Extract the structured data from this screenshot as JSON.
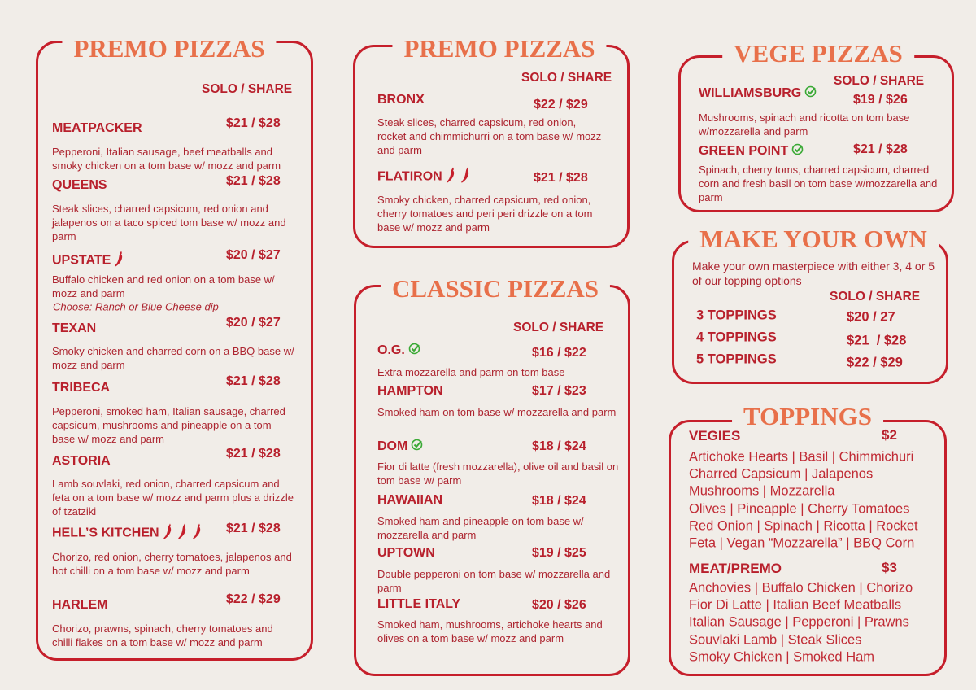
{
  "panels": [
    {
      "title": "PREMO PIZZAS",
      "header": "SOLO / SHARE",
      "items": [
        {
          "name": "MEATPACKER",
          "price": "$21 / $28",
          "desc": "Pepperoni, Italian sausage, beef meatballs and smoky chicken on a tom base w/ mozz and parm"
        },
        {
          "name": "QUEENS",
          "price": "$21 / $28",
          "desc": "Steak slices, charred capsicum, red onion and jalapenos on a taco spiced tom base w/ mozz and parm"
        },
        {
          "name": "UPSTATE",
          "price": "$20 / $27",
          "desc": "Buffalo chicken and red onion on a tom base w/ mozz and parm",
          "note": "Choose: Ranch or Blue Cheese dip"
        },
        {
          "name": "TEXAN",
          "price": "$20 / $27",
          "desc": "Smoky chicken and charred corn on a BBQ base w/ mozz and parm"
        },
        {
          "name": "TRIBECA",
          "price": "$21 / $28",
          "desc": "Pepperoni, smoked ham, Italian sausage, charred capsicum, mushrooms and pineapple on a tom base w/ mozz and parm"
        },
        {
          "name": "ASTORIA",
          "price": "$21 / $28",
          "desc": "Lamb souvlaki, red onion, charred capsicum and feta on a tom base w/ mozz and parm plus a drizzle of tzatziki"
        },
        {
          "name": "HELL’S KITCHEN",
          "price": "$21 / $28",
          "desc": "Chorizo, red onion, cherry tomatoes, jalapenos and hot chilli on a tom base w/ mozz and parm"
        },
        {
          "name": "HARLEM",
          "price": "$22 / $29",
          "desc": "Chorizo, prawns, spinach, cherry tomatoes and chilli flakes on a tom base w/ mozz and parm"
        }
      ]
    },
    {
      "title": "PREMO PIZZAS",
      "header": "SOLO / SHARE",
      "items": [
        {
          "name": "BRONX",
          "price": "$22 / $29",
          "desc": "Steak slices, charred capsicum, red onion, rocket and chimmichurri on a tom base w/ mozz and parm"
        },
        {
          "name": "FLATIRON",
          "price": "$21 / $28",
          "desc": "Smoky chicken, charred capsicum, red onion, cherry tomatoes and peri peri drizzle on a tom base w/ mozz and parm"
        }
      ]
    },
    {
      "title": "CLASSIC PIZZAS",
      "header": "SOLO / SHARE",
      "items": [
        {
          "name": "O.G.",
          "price": "$16 / $22",
          "desc": "Extra mozzarella and parm on tom base"
        },
        {
          "name": "HAMPTON",
          "price": "$17 / $23",
          "desc": "Smoked ham on tom base w/ mozzarella and parm"
        },
        {
          "name": "DOM",
          "price": "$18 / $24",
          "desc": "Fior di latte (fresh mozzarella), olive oil and basil on tom base w/ parm"
        },
        {
          "name": "HAWAIIAN",
          "price": "$18 / $24",
          "desc": "Smoked ham and pineapple on tom base w/ mozzarella and parm"
        },
        {
          "name": "UPTOWN",
          "price": "$19 / $25",
          "desc": "Double pepperoni on tom base w/ mozzarella and parm"
        },
        {
          "name": "LITTLE ITALY",
          "price": "$20 / $26",
          "desc": "Smoked ham, mushrooms, artichoke hearts and olives on a tom base w/ mozz and parm"
        }
      ]
    },
    {
      "title": "VEGE PIZZAS",
      "header": "SOLO / SHARE",
      "items": [
        {
          "name": "WILLIAMSBURG",
          "price": "$19 / $26",
          "desc": "Mushrooms, spinach and ricotta on tom base w/mozzarella and parm"
        },
        {
          "name": "GREEN POINT",
          "price": "$21 / $28",
          "desc": "Spinach, cherry toms, charred capsicum, charred corn and fresh basil on tom base w/mozzarella and parm"
        }
      ]
    }
  ],
  "make_your_own": {
    "title": "MAKE YOUR OWN",
    "intro": "Make your own masterpiece with either 3, 4 or 5 of our topping options",
    "header": "SOLO / SHARE",
    "rows": [
      {
        "name": "3 TOPPINGS",
        "price": "$20 / 27"
      },
      {
        "name": "4 TOPPINGS",
        "price": "$21  / $28"
      },
      {
        "name": "5 TOPPINGS",
        "price": "$22 / $29"
      }
    ]
  },
  "toppings": {
    "title": "TOPPINGS",
    "groups": [
      {
        "name": "VEGIES",
        "price": "$2",
        "lines": [
          "Artichoke Hearts | Basil | Chimmichuri",
          "Charred Capsicum | Jalapenos",
          "Mushrooms | Mozzarella",
          "Olives | Pineapple | Cherry Tomatoes",
          "Red Onion | Spinach | Ricotta | Rocket",
          "Feta | Vegan “Mozzarella” | BBQ Corn"
        ]
      },
      {
        "name": "MEAT/PREMO",
        "price": "$3",
        "lines": [
          "Anchovies | Buffalo Chicken | Chorizo",
          "Fior Di Latte | Italian Beef Meatballs",
          "Italian Sausage | Pepperoni | Prawns",
          "Souvlaki Lamb | Steak Slices",
          "Smoky Chicken | Smoked Ham"
        ]
      }
    ]
  }
}
